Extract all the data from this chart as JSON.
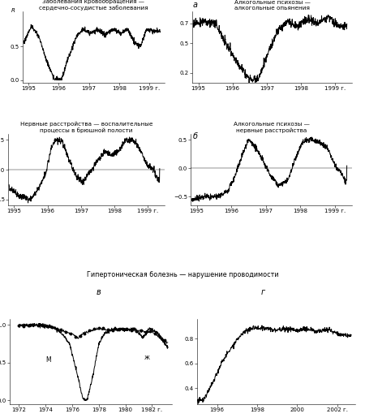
{
  "title_a": "а",
  "title_b": "б",
  "title_v": "в",
  "title_g": "г",
  "row1_left_title": "Заболевания кровообращения —\nсердечно-сосудистые заболевания",
  "row1_right_title": "Алкогольные психозы —\nалкогольные опьянения",
  "row2_left_title": "Нервные расстройства — воспалительные\nпроцессы в брюшной полости",
  "row2_right_title": "Алкогольные психозы —\nнервные расстройства",
  "row3_title": "Гипертоническая болезнь — нарушение проводимости",
  "label_R": "R",
  "label_M": "М",
  "label_Zh": "ж"
}
